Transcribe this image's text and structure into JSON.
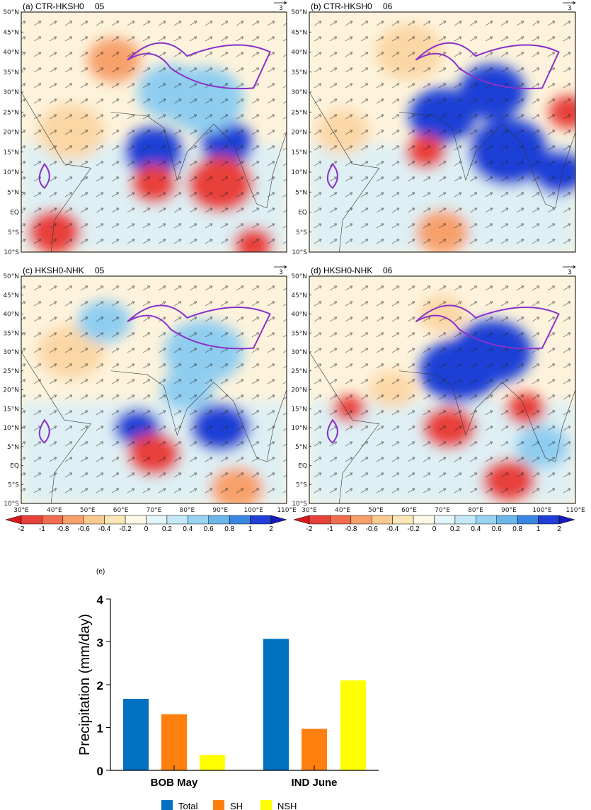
{
  "maps": {
    "panels": [
      {
        "title": "(a) CTR-HKSH0",
        "month": "05",
        "ref_vector": "3"
      },
      {
        "title": "(b) CTR-HKSH0",
        "month": "06",
        "ref_vector": "3"
      },
      {
        "title": "(c) HKSH0-NHK",
        "month": "05",
        "ref_vector": "3"
      },
      {
        "title": "(d) HKSH0-NHK",
        "month": "06",
        "ref_vector": "3"
      }
    ],
    "lat_labels": [
      "50°N",
      "45°N",
      "40°N",
      "35°N",
      "30°N",
      "25°N",
      "20°N",
      "15°N",
      "10°N",
      "5°N",
      "EQ",
      "5°S",
      "10°S"
    ],
    "lon_labels": [
      "30°E",
      "40°E",
      "50°E",
      "60°E",
      "70°E",
      "80°E",
      "90°E",
      "100°E",
      "110°E"
    ],
    "colorbar": {
      "labels": [
        "-2",
        "-1",
        "-0.8",
        "-0.6",
        "-0.4",
        "-0.2",
        "0",
        "0.2",
        "0.4",
        "0.6",
        "0.8",
        "1",
        "2"
      ],
      "colors": [
        "#d7191c",
        "#e8403a",
        "#f26d4f",
        "#f7a06a",
        "#fac98f",
        "#fde6b8",
        "#fff8e6",
        "#e4f5fb",
        "#c3e8f6",
        "#98d3f0",
        "#6cb6ea",
        "#3a86e0",
        "#1f3fd6",
        "#1a1ab8"
      ]
    }
  },
  "chart_data": {
    "type": "bar",
    "panel_label": "(e)",
    "categories": [
      "BOB May",
      "IND June"
    ],
    "series": [
      {
        "name": "Total",
        "color": "#0070c0",
        "values": [
          1.67,
          3.07
        ]
      },
      {
        "name": "SH",
        "color": "#ff7f0e",
        "values": [
          1.31,
          0.97
        ]
      },
      {
        "name": "NSH",
        "color": "#ffff00",
        "values": [
          0.36,
          2.1
        ]
      }
    ],
    "ylabel": "Precipitation (mm/day)",
    "xlabel": "",
    "yticks": [
      "0",
      "1",
      "2",
      "3",
      "4"
    ],
    "ylim": [
      0,
      4
    ],
    "legend_position": "bottom"
  }
}
